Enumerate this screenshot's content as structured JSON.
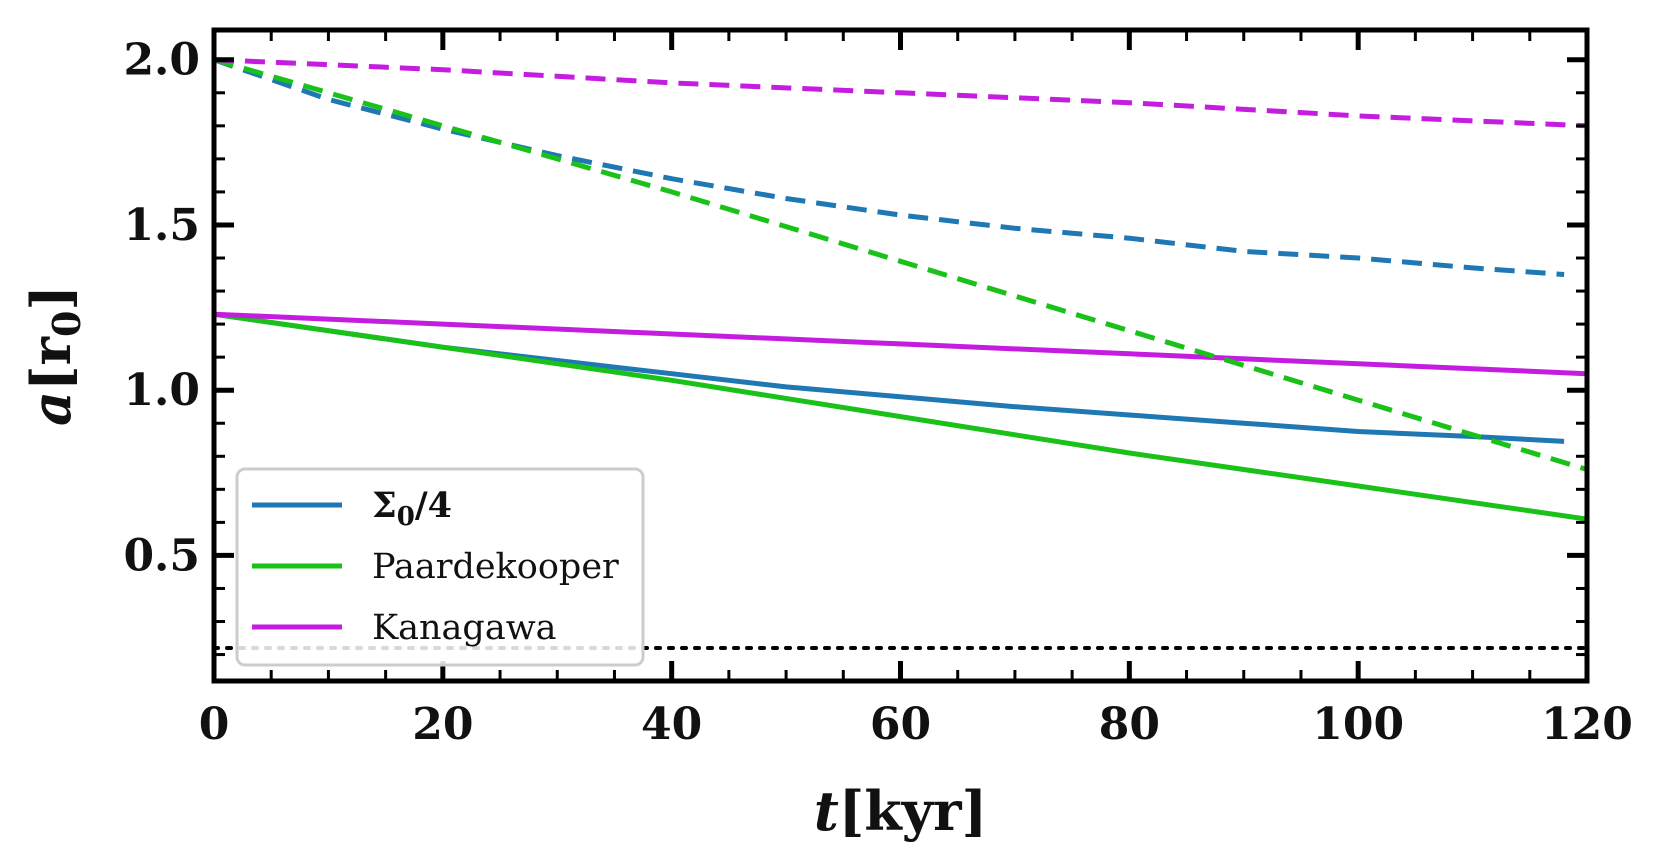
{
  "chart_data": {
    "type": "line",
    "title": "",
    "xlabel": "t[kyr]",
    "ylabel": "a[r0]",
    "xlim": [
      0,
      120
    ],
    "ylim": [
      0.12,
      2.09
    ],
    "xticks": [
      0,
      20,
      40,
      60,
      80,
      100,
      120
    ],
    "yticks": [
      0.5,
      1.0,
      1.5,
      2.0
    ],
    "xtick_labels": [
      "0",
      "20",
      "40",
      "60",
      "80",
      "100",
      "120"
    ],
    "ytick_labels": [
      "0.5",
      "1.0",
      "1.5",
      "2.0"
    ],
    "grid": false,
    "legend_position": "lower-left",
    "series": [
      {
        "name": "Σ0/4",
        "color": "#1f77b4",
        "style": "solid",
        "show_in_legend": true,
        "x": [
          0,
          10,
          20,
          30,
          40,
          50,
          60,
          70,
          80,
          90,
          100,
          110,
          118
        ],
        "y": [
          1.23,
          1.18,
          1.13,
          1.09,
          1.05,
          1.01,
          0.98,
          0.95,
          0.925,
          0.9,
          0.875,
          0.86,
          0.845
        ]
      },
      {
        "name": "Paardekooper",
        "color": "#19c119",
        "style": "solid",
        "show_in_legend": true,
        "x": [
          0,
          20,
          40,
          60,
          80,
          100,
          120
        ],
        "y": [
          1.23,
          1.13,
          1.03,
          0.92,
          0.81,
          0.71,
          0.61
        ]
      },
      {
        "name": "Kanagawa",
        "color": "#c41ddf",
        "style": "solid",
        "show_in_legend": true,
        "x": [
          0,
          20,
          40,
          60,
          80,
          100,
          120
        ],
        "y": [
          1.23,
          1.2,
          1.17,
          1.14,
          1.11,
          1.08,
          1.05
        ]
      },
      {
        "name": "Σ0/4 (dashed)",
        "color": "#1f77b4",
        "style": "dashed",
        "show_in_legend": false,
        "x": [
          0,
          10,
          20,
          30,
          40,
          50,
          60,
          70,
          80,
          90,
          100,
          110,
          118
        ],
        "y": [
          2.0,
          1.88,
          1.79,
          1.71,
          1.64,
          1.58,
          1.53,
          1.49,
          1.46,
          1.42,
          1.4,
          1.37,
          1.35
        ]
      },
      {
        "name": "Paardekooper (dashed)",
        "color": "#19c119",
        "style": "dashed",
        "show_in_legend": false,
        "x": [
          0,
          20,
          40,
          60,
          80,
          100,
          120
        ],
        "y": [
          2.0,
          1.8,
          1.6,
          1.39,
          1.18,
          0.97,
          0.76
        ]
      },
      {
        "name": "Kanagawa (dashed)",
        "color": "#c41ddf",
        "style": "dashed",
        "show_in_legend": false,
        "x": [
          0,
          20,
          40,
          60,
          80,
          100,
          120
        ],
        "y": [
          2.0,
          1.97,
          1.93,
          1.9,
          1.87,
          1.83,
          1.8
        ]
      }
    ],
    "reference_lines": [
      {
        "name": "inner boundary",
        "y": 0.22,
        "color": "#000000",
        "style": "dotted"
      }
    ]
  }
}
